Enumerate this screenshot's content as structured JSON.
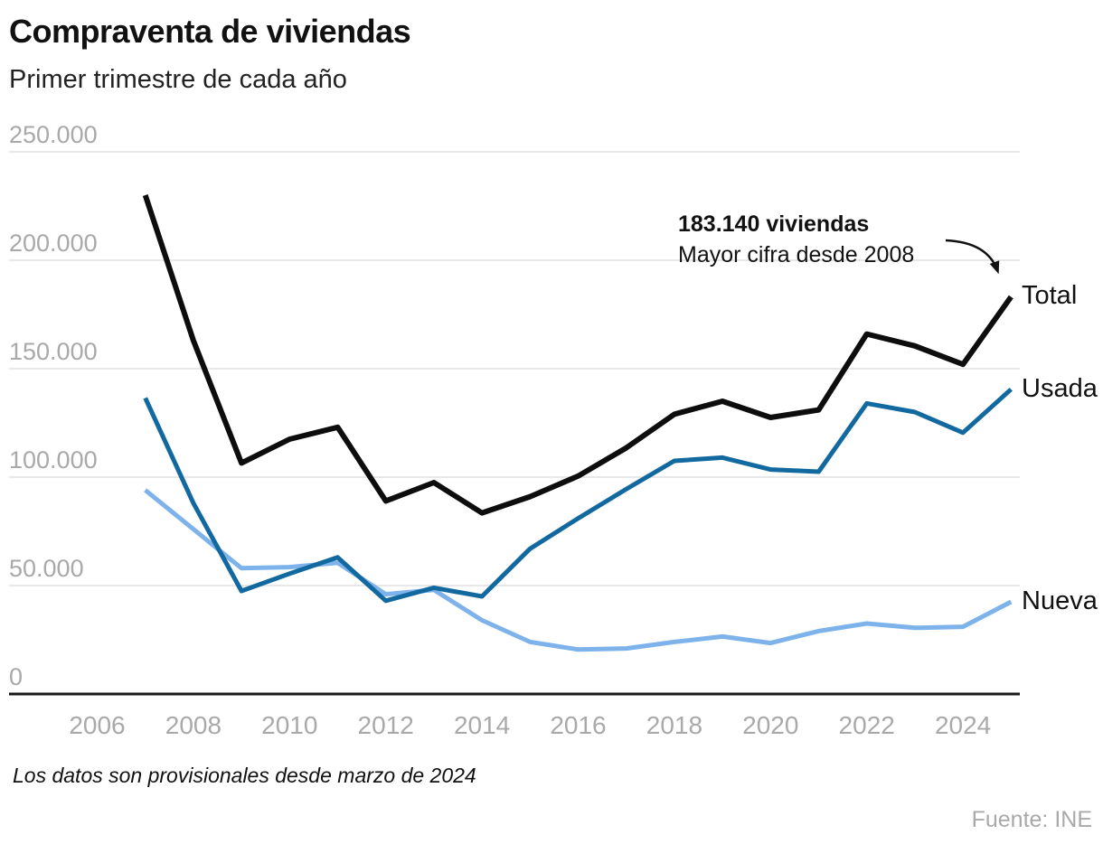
{
  "header": {
    "title": "Compraventa de viviendas",
    "subtitle": "Primer trimestre de cada año"
  },
  "chart_data": {
    "type": "line",
    "title": "Compraventa de viviendas",
    "subtitle": "Primer trimestre de cada año",
    "x": [
      2007,
      2008,
      2009,
      2010,
      2011,
      2012,
      2013,
      2014,
      2015,
      2016,
      2017,
      2018,
      2019,
      2020,
      2021,
      2022,
      2023,
      2024,
      2025
    ],
    "series": [
      {
        "name": "Total",
        "color": "#0d0d0d",
        "stroke_width": 6,
        "values": [
          230000,
          163000,
          106500,
          117500,
          123000,
          89000,
          97500,
          83500,
          91000,
          100500,
          113500,
          129000,
          135000,
          127500,
          131000,
          166000,
          160500,
          152000,
          183140
        ]
      },
      {
        "name": "Usada",
        "color": "#1169a0",
        "stroke_width": 5,
        "values": [
          136500,
          88000,
          47500,
          55500,
          63000,
          43000,
          49000,
          45000,
          67000,
          81000,
          94500,
          107500,
          109000,
          103500,
          102500,
          134000,
          130000,
          120500,
          140500
        ]
      },
      {
        "name": "Nueva",
        "color": "#7db3ea",
        "stroke_width": 5,
        "values": [
          94000,
          76000,
          58000,
          58500,
          60500,
          46000,
          48000,
          34000,
          24000,
          20500,
          21000,
          24000,
          26500,
          23500,
          29000,
          32500,
          30500,
          31000,
          42500
        ]
      }
    ],
    "ylim": [
      0,
      250000
    ],
    "xlabel": "",
    "ylabel": "",
    "grid": true,
    "legend_position": "right-of-line-ends",
    "y_ticks": [
      {
        "value": 250000,
        "label": "250.000"
      },
      {
        "value": 200000,
        "label": "200.000"
      },
      {
        "value": 150000,
        "label": "150.000"
      },
      {
        "value": 100000,
        "label": "100.000"
      },
      {
        "value": 50000,
        "label": "50.000"
      },
      {
        "value": 0,
        "label": "0"
      }
    ],
    "x_ticks": [
      {
        "value": 2006,
        "label": "2006"
      },
      {
        "value": 2008,
        "label": "2008"
      },
      {
        "value": 2010,
        "label": "2010"
      },
      {
        "value": 2012,
        "label": "2012"
      },
      {
        "value": 2014,
        "label": "2014"
      },
      {
        "value": 2016,
        "label": "2016"
      },
      {
        "value": 2018,
        "label": "2018"
      },
      {
        "value": 2020,
        "label": "2020"
      },
      {
        "value": 2022,
        "label": "2022"
      },
      {
        "value": 2024,
        "label": "2024"
      }
    ],
    "annotation": {
      "bold": "183.140 viviendas",
      "text": "Mayor cifra desde 2008",
      "target_year": 2025,
      "target_value": 183140
    }
  },
  "footer": {
    "note": "Los datos son provisionales desde marzo de 2024",
    "source": "Fuente: INE"
  },
  "colors": {
    "total": "#0d0d0d",
    "usada": "#1169a0",
    "nueva": "#7db3ea",
    "gridline": "#e8e8e8",
    "axis": "#1a1a1a",
    "tick_text": "#a9a9a9"
  }
}
